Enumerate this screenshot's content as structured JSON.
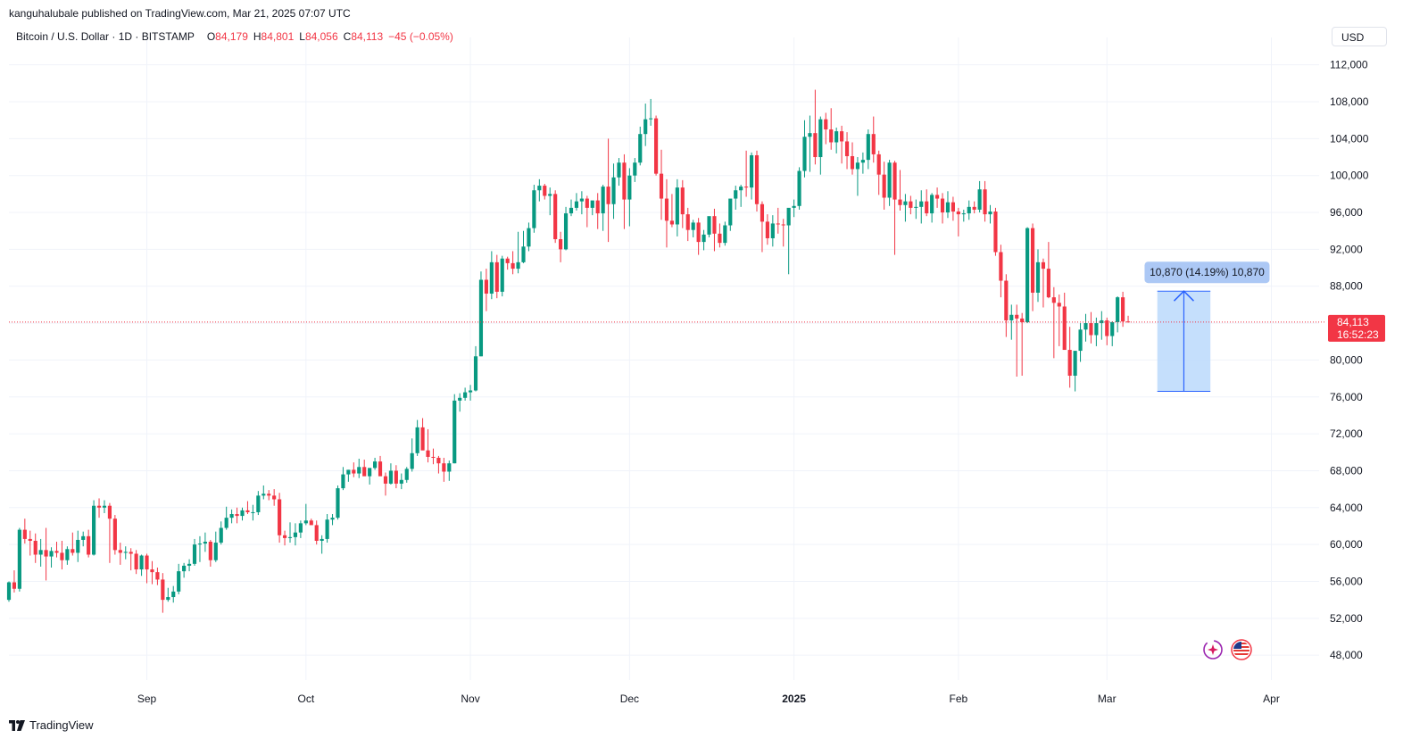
{
  "publisher_line": "kanguhalubale published on TradingView.com, Mar 21, 2025 07:07 UTC",
  "legend": {
    "symbol": "Bitcoin / U.S. Dollar · 1D · BITSTAMP",
    "open_label": "O",
    "open": "84,179",
    "high_label": "H",
    "high": "84,801",
    "low_label": "L",
    "low": "84,056",
    "close_label": "C",
    "close": "84,113",
    "change": "−45 (−0.05%)"
  },
  "currency_button": "USD",
  "brand": "TradingView",
  "colors": {
    "up": "#089981",
    "down": "#f23645",
    "measure": "#2962ff",
    "measure_fill": "#bbd9fb",
    "grid": "#f0f3fa"
  },
  "icons": [
    "assistant-sparkle-icon",
    "us-flag-icon"
  ],
  "chart_data": {
    "type": "candlestick",
    "title": "Bitcoin / U.S. Dollar · 1D · BITSTAMP",
    "xlabel": "",
    "ylabel": "",
    "x_range": [
      "2024-08-06",
      "2025-04-10"
    ],
    "ylim": [
      45500,
      114000
    ],
    "y_ticks": [
      "112,000",
      "108,000",
      "104,000",
      "100,000",
      "96,000",
      "92,000",
      "88,000",
      "84,000",
      "80,000",
      "76,000",
      "72,000",
      "68,000",
      "64,000",
      "60,000",
      "56,000",
      "52,000",
      "48,000"
    ],
    "x_ticks": [
      {
        "date": "2024-09-01",
        "label": "Sep",
        "bold": false
      },
      {
        "date": "2024-10-01",
        "label": "Oct",
        "bold": false
      },
      {
        "date": "2024-11-01",
        "label": "Nov",
        "bold": false
      },
      {
        "date": "2024-12-01",
        "label": "Dec",
        "bold": false
      },
      {
        "date": "2025-01-01",
        "label": "2025",
        "bold": true
      },
      {
        "date": "2025-02-01",
        "label": "Feb",
        "bold": false
      },
      {
        "date": "2025-03-01",
        "label": "Mar",
        "bold": false
      },
      {
        "date": "2025-04-01",
        "label": "Apr",
        "bold": false
      }
    ],
    "price_line": {
      "value": 84113,
      "label": "84,113",
      "countdown": "16:52:23"
    },
    "measure": {
      "from_date": "2025-03-11",
      "to_date": "2025-03-20",
      "low": 76600,
      "high": 87470,
      "label": "10,870 (14.19%) 10,870"
    },
    "series_start": "2024-08-06",
    "series": [
      [
        54000,
        56000,
        53800,
        55900
      ],
      [
        55900,
        57200,
        54800,
        55200
      ],
      [
        55200,
        61800,
        54900,
        61600
      ],
      [
        61600,
        62800,
        60100,
        60600
      ],
      [
        60600,
        61500,
        58800,
        60400
      ],
      [
        60400,
        61200,
        58000,
        58900
      ],
      [
        58900,
        60600,
        57600,
        59400
      ],
      [
        59400,
        61800,
        56100,
        58700
      ],
      [
        58700,
        59700,
        57500,
        59300
      ],
      [
        59300,
        60300,
        58600,
        59100
      ],
      [
        59100,
        60400,
        57300,
        58300
      ],
      [
        58300,
        59800,
        57800,
        59500
      ],
      [
        59500,
        61300,
        58800,
        59100
      ],
      [
        59100,
        61500,
        58100,
        60500
      ],
      [
        60500,
        61400,
        59800,
        60900
      ],
      [
        60900,
        61600,
        58600,
        58900
      ],
      [
        58900,
        64800,
        58800,
        64200
      ],
      [
        64200,
        65000,
        62900,
        64000
      ],
      [
        64000,
        64800,
        63400,
        64200
      ],
      [
        64200,
        64500,
        58000,
        62800
      ],
      [
        62800,
        63200,
        58900,
        59400
      ],
      [
        59400,
        60200,
        57800,
        59100
      ],
      [
        59100,
        59800,
        58400,
        59200
      ],
      [
        59200,
        59600,
        57200,
        59000
      ],
      [
        59000,
        59400,
        56800,
        57300
      ],
      [
        57300,
        58900,
        56600,
        58800
      ],
      [
        58800,
        59000,
        55800,
        57300
      ],
      [
        57300,
        58200,
        55700,
        57000
      ],
      [
        57000,
        57500,
        55600,
        56200
      ],
      [
        56200,
        56900,
        52600,
        54000
      ],
      [
        54000,
        55300,
        53800,
        54300
      ],
      [
        54300,
        55500,
        53700,
        54900
      ],
      [
        54900,
        57900,
        54600,
        57100
      ],
      [
        57100,
        58000,
        56400,
        57700
      ],
      [
        57700,
        58400,
        57100,
        57900
      ],
      [
        57900,
        60600,
        57700,
        60000
      ],
      [
        60000,
        60900,
        58100,
        60100
      ],
      [
        60100,
        61300,
        59200,
        60300
      ],
      [
        60300,
        60500,
        57600,
        58300
      ],
      [
        58300,
        61400,
        58100,
        60200
      ],
      [
        60200,
        62500,
        60000,
        61800
      ],
      [
        61800,
        64100,
        61600,
        62900
      ],
      [
        62900,
        63800,
        62300,
        63300
      ],
      [
        63300,
        64000,
        62300,
        63100
      ],
      [
        63100,
        64000,
        62600,
        63700
      ],
      [
        63700,
        64700,
        63300,
        63500
      ],
      [
        63500,
        64300,
        62600,
        63500
      ],
      [
        63500,
        65800,
        63200,
        65300
      ],
      [
        65300,
        66400,
        64900,
        65500
      ],
      [
        65500,
        65900,
        64800,
        65300
      ],
      [
        65300,
        66000,
        64200,
        64900
      ],
      [
        64900,
        65600,
        60200,
        61000
      ],
      [
        61000,
        61500,
        59900,
        60700
      ],
      [
        60700,
        62400,
        60200,
        60800
      ],
      [
        60800,
        62300,
        59900,
        61300
      ],
      [
        61300,
        62600,
        60700,
        62300
      ],
      [
        62300,
        64400,
        62100,
        62600
      ],
      [
        62600,
        62800,
        62200,
        62100
      ],
      [
        62100,
        62600,
        60000,
        60400
      ],
      [
        60400,
        61000,
        59000,
        60600
      ],
      [
        60600,
        63300,
        60200,
        62700
      ],
      [
        62700,
        63300,
        62100,
        62900
      ],
      [
        62900,
        66400,
        62700,
        66100
      ],
      [
        66100,
        68400,
        65900,
        67600
      ],
      [
        67600,
        68100,
        66800,
        68100
      ],
      [
        68100,
        68900,
        67300,
        67700
      ],
      [
        67700,
        69300,
        67200,
        68400
      ],
      [
        68400,
        69200,
        67700,
        67400
      ],
      [
        67400,
        68000,
        66500,
        68300
      ],
      [
        68300,
        69400,
        68100,
        69000
      ],
      [
        69000,
        69600,
        67600,
        67400
      ],
      [
        67400,
        67800,
        65300,
        66600
      ],
      [
        66600,
        68800,
        66500,
        68000
      ],
      [
        68000,
        68600,
        66100,
        66600
      ],
      [
        66600,
        67700,
        66000,
        67000
      ],
      [
        67000,
        68400,
        66700,
        68200
      ],
      [
        68200,
        71500,
        67900,
        69900
      ],
      [
        69900,
        73500,
        69600,
        72700
      ],
      [
        72700,
        73700,
        71500,
        70200
      ],
      [
        70200,
        72500,
        68900,
        69500
      ],
      [
        69500,
        70400,
        68700,
        69400
      ],
      [
        69400,
        69600,
        67700,
        68800
      ],
      [
        68800,
        69400,
        66800,
        67900
      ],
      [
        67900,
        69100,
        66900,
        68800
      ],
      [
        68800,
        76300,
        68800,
        75600
      ],
      [
        75600,
        76400,
        74400,
        75900
      ],
      [
        75900,
        77000,
        75600,
        76500
      ],
      [
        76500,
        77300,
        75600,
        76700
      ],
      [
        76700,
        81500,
        76600,
        80400
      ],
      [
        80400,
        89600,
        80400,
        88700
      ],
      [
        88700,
        89900,
        85300,
        87200
      ],
      [
        87200,
        91800,
        86600,
        90600
      ],
      [
        90600,
        91400,
        86700,
        87400
      ],
      [
        87400,
        91300,
        86900,
        91000
      ],
      [
        91000,
        91200,
        89800,
        90500
      ],
      [
        90500,
        91800,
        89300,
        89900
      ],
      [
        89900,
        93900,
        89400,
        90600
      ],
      [
        90600,
        94000,
        90500,
        92300
      ],
      [
        92300,
        94900,
        91800,
        94300
      ],
      [
        94300,
        99000,
        93800,
        98400
      ],
      [
        98400,
        99600,
        97200,
        98900
      ],
      [
        98900,
        99100,
        97400,
        97800
      ],
      [
        97800,
        98700,
        95700,
        98000
      ],
      [
        98000,
        98400,
        92700,
        93100
      ],
      [
        93100,
        93900,
        90600,
        92000
      ],
      [
        92000,
        96600,
        91900,
        95900
      ],
      [
        95900,
        97400,
        95600,
        96500
      ],
      [
        96500,
        98100,
        96200,
        97200
      ],
      [
        97200,
        98300,
        95800,
        97500
      ],
      [
        97500,
        97800,
        94400,
        96500
      ],
      [
        96500,
        97200,
        95700,
        97300
      ],
      [
        97300,
        98100,
        94200,
        95900
      ],
      [
        95900,
        99000,
        94000,
        98800
      ],
      [
        98800,
        104000,
        92800,
        96900
      ],
      [
        96900,
        101300,
        95300,
        99800
      ],
      [
        99800,
        101900,
        98900,
        101400
      ],
      [
        101400,
        102300,
        94200,
        97400
      ],
      [
        97400,
        100800,
        94500,
        100000
      ],
      [
        100000,
        101900,
        99300,
        101400
      ],
      [
        101400,
        105300,
        101100,
        104500
      ],
      [
        104500,
        107800,
        103200,
        106100
      ],
      [
        106100,
        108300,
        105400,
        106200
      ],
      [
        106200,
        106500,
        100000,
        100200
      ],
      [
        100200,
        102800,
        95200,
        97500
      ],
      [
        97500,
        99600,
        92200,
        95100
      ],
      [
        95100,
        98000,
        94400,
        94700
      ],
      [
        94700,
        99600,
        93400,
        98700
      ],
      [
        98700,
        99500,
        94300,
        95800
      ],
      [
        95800,
        96500,
        92900,
        94100
      ],
      [
        94100,
        95200,
        93300,
        94900
      ],
      [
        94900,
        95400,
        91400,
        92800
      ],
      [
        92800,
        94100,
        91900,
        93600
      ],
      [
        93600,
        95000,
        93300,
        95600
      ],
      [
        95600,
        96400,
        91800,
        93700
      ],
      [
        93700,
        94800,
        92200,
        92700
      ],
      [
        92700,
        95000,
        92400,
        94600
      ],
      [
        94600,
        96500,
        94000,
        97500
      ],
      [
        97500,
        98900,
        96300,
        98400
      ],
      [
        98400,
        99000,
        96600,
        98800
      ],
      [
        98800,
        102700,
        97700,
        98700
      ],
      [
        98700,
        102500,
        97400,
        102200
      ],
      [
        102200,
        102700,
        96100,
        96900
      ],
      [
        96900,
        97200,
        91700,
        95000
      ],
      [
        95000,
        95800,
        92500,
        93200
      ],
      [
        93200,
        95700,
        92300,
        94800
      ],
      [
        94800,
        96500,
        93700,
        94700
      ],
      [
        94700,
        95300,
        92300,
        94600
      ],
      [
        94600,
        96200,
        89300,
        96500
      ],
      [
        96500,
        97400,
        95500,
        96700
      ],
      [
        96700,
        100900,
        96300,
        100500
      ],
      [
        100500,
        106000,
        99800,
        104200
      ],
      [
        104200,
        106500,
        100400,
        104600
      ],
      [
        104600,
        109300,
        101200,
        102000
      ],
      [
        102000,
        106400,
        100100,
        106100
      ],
      [
        106100,
        106800,
        103400,
        105000
      ],
      [
        105000,
        107300,
        102800,
        103600
      ],
      [
        103600,
        105200,
        102400,
        104800
      ],
      [
        104800,
        105400,
        101300,
        103700
      ],
      [
        103700,
        104700,
        100700,
        102100
      ],
      [
        102100,
        103600,
        100100,
        100700
      ],
      [
        100700,
        102000,
        97800,
        101400
      ],
      [
        101400,
        102500,
        100200,
        101700
      ],
      [
        101700,
        105000,
        100700,
        104500
      ],
      [
        104500,
        106400,
        101400,
        102300
      ],
      [
        102300,
        102700,
        97900,
        100100
      ],
      [
        100100,
        101500,
        96300,
        97600
      ],
      [
        97600,
        101700,
        96700,
        101400
      ],
      [
        101400,
        101600,
        91400,
        97400
      ],
      [
        97400,
        100600,
        96200,
        96800
      ],
      [
        96800,
        98000,
        95000,
        97200
      ],
      [
        97200,
        97800,
        95800,
        96500
      ],
      [
        96500,
        97400,
        95300,
        96600
      ],
      [
        96600,
        98400,
        94800,
        97200
      ],
      [
        97200,
        98500,
        95600,
        95900
      ],
      [
        95900,
        98100,
        94900,
        97900
      ],
      [
        97900,
        98700,
        96500,
        97500
      ],
      [
        97500,
        98100,
        94800,
        96000
      ],
      [
        96000,
        98300,
        95400,
        97100
      ],
      [
        97100,
        97700,
        95100,
        96100
      ],
      [
        96100,
        96500,
        93400,
        95800
      ],
      [
        95800,
        96300,
        95000,
        95900
      ],
      [
        95900,
        97300,
        95200,
        96600
      ],
      [
        96600,
        97200,
        95900,
        96300
      ],
      [
        96300,
        99400,
        96000,
        98500
      ],
      [
        98500,
        99400,
        95000,
        95800
      ],
      [
        95800,
        96800,
        94800,
        96100
      ],
      [
        96100,
        96500,
        91300,
        91700
      ],
      [
        91700,
        92500,
        86800,
        88600
      ],
      [
        88600,
        89300,
        82500,
        84300
      ],
      [
        84300,
        86000,
        82200,
        84900
      ],
      [
        84900,
        86000,
        78200,
        84500
      ],
      [
        84500,
        85100,
        78300,
        84100
      ],
      [
        84100,
        94400,
        84000,
        94300
      ],
      [
        94300,
        94800,
        85300,
        87300
      ],
      [
        87300,
        92000,
        86300,
        90600
      ],
      [
        90600,
        91000,
        85700,
        89900
      ],
      [
        89900,
        92800,
        86700,
        86800
      ],
      [
        86800,
        87900,
        80200,
        86200
      ],
      [
        86200,
        87100,
        81500,
        85800
      ],
      [
        85800,
        87300,
        83800,
        81100
      ],
      [
        81100,
        83600,
        77000,
        78300
      ],
      [
        78300,
        79700,
        76600,
        81000
      ],
      [
        81000,
        84000,
        79800,
        83300
      ],
      [
        83300,
        85000,
        82000,
        84000
      ],
      [
        84000,
        85200,
        81800,
        82700
      ],
      [
        82700,
        84600,
        81500,
        84000
      ],
      [
        84000,
        85300,
        82200,
        84300
      ],
      [
        84300,
        84600,
        81600,
        82600
      ],
      [
        82600,
        84200,
        81500,
        84100
      ],
      [
        84100,
        86900,
        83000,
        86800
      ],
      [
        86800,
        87400,
        83600,
        84179
      ],
      [
        84179,
        84801,
        84056,
        84113
      ]
    ]
  }
}
